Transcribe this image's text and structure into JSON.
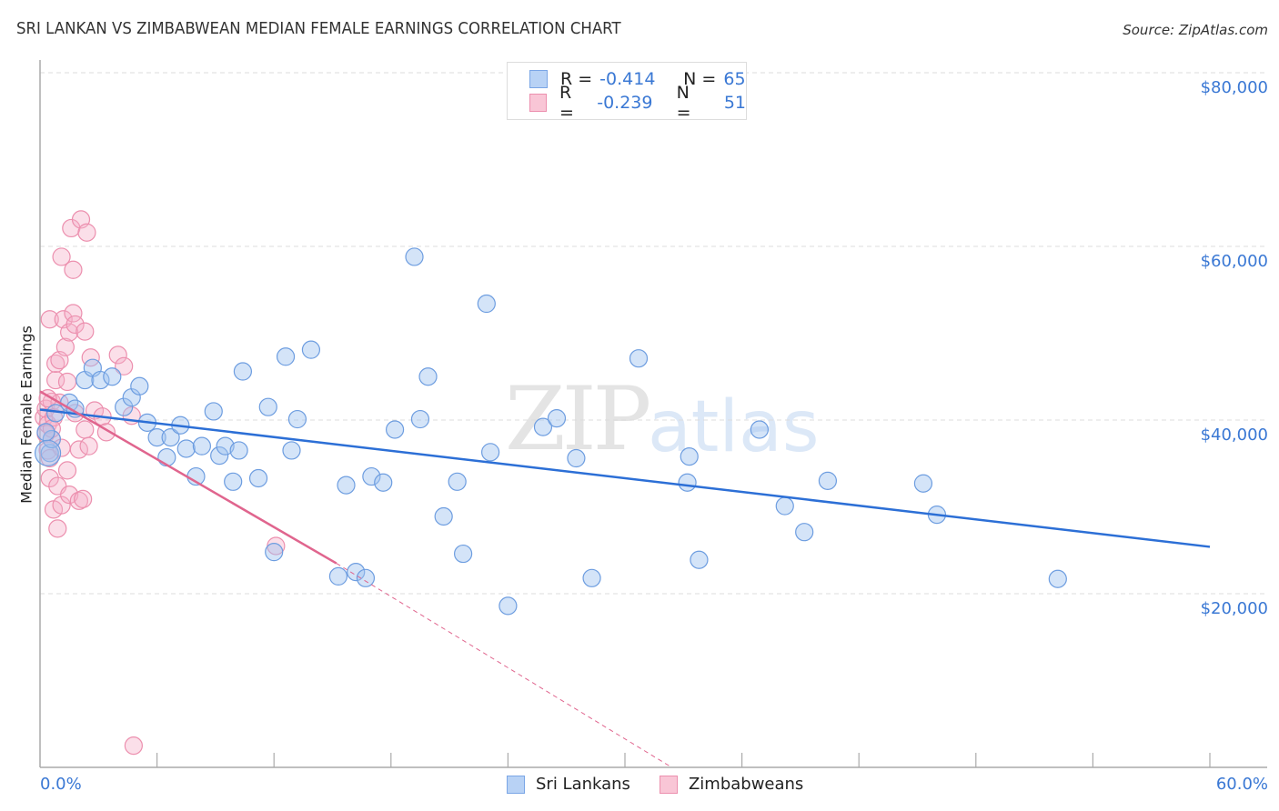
{
  "header": {
    "title": "SRI LANKAN VS ZIMBABWEAN MEDIAN FEMALE EARNINGS CORRELATION CHART",
    "source": "Source: ZipAtlas.com"
  },
  "watermark": {
    "zip": "ZIP",
    "atlas": "atlas"
  },
  "legend_top": [
    {
      "r_label": "R =",
      "r_value": "-0.414",
      "n_label": "N =",
      "n_value": "65",
      "color": "#b8d2f5",
      "border": "#7aa6e6"
    },
    {
      "r_label": "R =",
      "r_value": "-0.239",
      "n_label": "N =",
      "n_value": "51",
      "color": "#f9c6d6",
      "border": "#ec8fae"
    }
  ],
  "legend_bottom": [
    {
      "label": "Sri Lankans",
      "color": "#b8d2f5",
      "border": "#7aa6e6"
    },
    {
      "label": "Zimbabweans",
      "color": "#f9c6d6",
      "border": "#ec8fae"
    }
  ],
  "axes": {
    "ylabel": "Median Female Earnings",
    "y_ticks": [
      "$80,000",
      "$60,000",
      "$40,000",
      "$20,000"
    ],
    "x_min_label": "0.0%",
    "x_max_label": "60.0%"
  },
  "colors": {
    "blue_line": "#2c6fd6",
    "pink_line": "#e0658e",
    "blue_fill": "rgba(160,196,240,0.45)",
    "blue_stroke": "#6d9de0",
    "pink_fill": "rgba(246,176,200,0.40)",
    "pink_stroke": "#ec8fae",
    "axis_text": "#3a78d4",
    "grid": "#dddddd"
  },
  "chart_data": {
    "type": "scatter",
    "title": "SRI LANKAN VS ZIMBABWEAN MEDIAN FEMALE EARNINGS CORRELATION CHART",
    "xlabel": "",
    "ylabel": "Median Female Earnings",
    "xlim": [
      0,
      60
    ],
    "ylim": [
      0,
      80000
    ],
    "x_unit": "%",
    "y_ticks": [
      20000,
      40000,
      60000,
      80000
    ],
    "grid": true,
    "legend_position": "top-center and bottom",
    "series": [
      {
        "name": "Sri Lankans",
        "R": -0.414,
        "N": 65,
        "trend": {
          "x": [
            0,
            60
          ],
          "y": [
            41200,
            25400
          ]
        },
        "points": [
          [
            0.5,
            36200
          ],
          [
            0.6,
            37800
          ],
          [
            0.8,
            40800
          ],
          [
            1.5,
            42000
          ],
          [
            1.8,
            41300
          ],
          [
            2.3,
            44600
          ],
          [
            2.7,
            46000
          ],
          [
            3.1,
            44600
          ],
          [
            3.7,
            45000
          ],
          [
            4.3,
            41500
          ],
          [
            4.7,
            42600
          ],
          [
            5.1,
            43900
          ],
          [
            5.5,
            39700
          ],
          [
            6.0,
            38000
          ],
          [
            6.5,
            35700
          ],
          [
            6.7,
            38000
          ],
          [
            7.2,
            39400
          ],
          [
            7.5,
            36700
          ],
          [
            8.0,
            33500
          ],
          [
            8.3,
            37000
          ],
          [
            8.9,
            41000
          ],
          [
            9.2,
            35900
          ],
          [
            9.5,
            37000
          ],
          [
            9.9,
            32900
          ],
          [
            10.2,
            36500
          ],
          [
            10.4,
            45600
          ],
          [
            11.2,
            33300
          ],
          [
            11.7,
            41500
          ],
          [
            12.0,
            24800
          ],
          [
            12.6,
            47300
          ],
          [
            12.9,
            36500
          ],
          [
            13.2,
            40100
          ],
          [
            13.9,
            48100
          ],
          [
            15.3,
            22000
          ],
          [
            15.7,
            32500
          ],
          [
            16.2,
            22500
          ],
          [
            16.7,
            21800
          ],
          [
            17.0,
            33500
          ],
          [
            17.6,
            32800
          ],
          [
            18.2,
            38900
          ],
          [
            19.2,
            58800
          ],
          [
            19.5,
            40100
          ],
          [
            19.9,
            45000
          ],
          [
            20.7,
            28900
          ],
          [
            21.4,
            32900
          ],
          [
            21.7,
            24600
          ],
          [
            22.9,
            53400
          ],
          [
            23.1,
            36300
          ],
          [
            24.0,
            18600
          ],
          [
            25.8,
            39200
          ],
          [
            26.5,
            40200
          ],
          [
            27.5,
            35600
          ],
          [
            28.3,
            21800
          ],
          [
            30.7,
            47100
          ],
          [
            33.2,
            32800
          ],
          [
            33.3,
            35800
          ],
          [
            33.8,
            23900
          ],
          [
            36.9,
            38900
          ],
          [
            38.2,
            30100
          ],
          [
            39.2,
            27100
          ],
          [
            40.4,
            33000
          ],
          [
            45.3,
            32700
          ],
          [
            46.0,
            29100
          ],
          [
            52.2,
            21700
          ],
          [
            0.3,
            38600
          ]
        ]
      },
      {
        "name": "Zimbabweans",
        "R": -0.239,
        "N": 51,
        "trend": {
          "x": [
            0,
            15.2
          ],
          "y": [
            43300,
            23500
          ],
          "dashed_extension": {
            "x": [
              15.2,
              32.4
            ],
            "y": [
              23500,
              0
            ]
          }
        },
        "points": [
          [
            0.2,
            40300
          ],
          [
            0.3,
            38400
          ],
          [
            0.3,
            41300
          ],
          [
            0.4,
            36500
          ],
          [
            0.4,
            39500
          ],
          [
            0.5,
            33300
          ],
          [
            0.5,
            35600
          ],
          [
            0.5,
            51600
          ],
          [
            0.6,
            42100
          ],
          [
            0.6,
            37800
          ],
          [
            0.7,
            40300
          ],
          [
            0.7,
            29700
          ],
          [
            0.8,
            44600
          ],
          [
            0.8,
            46500
          ],
          [
            0.9,
            32400
          ],
          [
            0.9,
            27500
          ],
          [
            1.0,
            42000
          ],
          [
            1.0,
            46900
          ],
          [
            1.1,
            36800
          ],
          [
            1.1,
            30200
          ],
          [
            1.1,
            58800
          ],
          [
            1.2,
            51600
          ],
          [
            1.3,
            48400
          ],
          [
            1.4,
            34200
          ],
          [
            1.4,
            44400
          ],
          [
            1.5,
            50100
          ],
          [
            1.5,
            31400
          ],
          [
            1.6,
            62100
          ],
          [
            1.7,
            52300
          ],
          [
            1.7,
            57300
          ],
          [
            1.8,
            40800
          ],
          [
            1.8,
            51000
          ],
          [
            2.0,
            30700
          ],
          [
            2.0,
            36600
          ],
          [
            2.1,
            63100
          ],
          [
            2.2,
            30900
          ],
          [
            2.3,
            38900
          ],
          [
            2.3,
            50200
          ],
          [
            2.4,
            61600
          ],
          [
            2.5,
            37000
          ],
          [
            2.6,
            47200
          ],
          [
            2.8,
            41100
          ],
          [
            3.2,
            40400
          ],
          [
            3.4,
            38600
          ],
          [
            4.0,
            47500
          ],
          [
            4.3,
            46200
          ],
          [
            4.7,
            40500
          ],
          [
            4.8,
            2500
          ],
          [
            12.1,
            25500
          ],
          [
            0.4,
            42500
          ],
          [
            0.6,
            39000
          ]
        ]
      }
    ]
  }
}
